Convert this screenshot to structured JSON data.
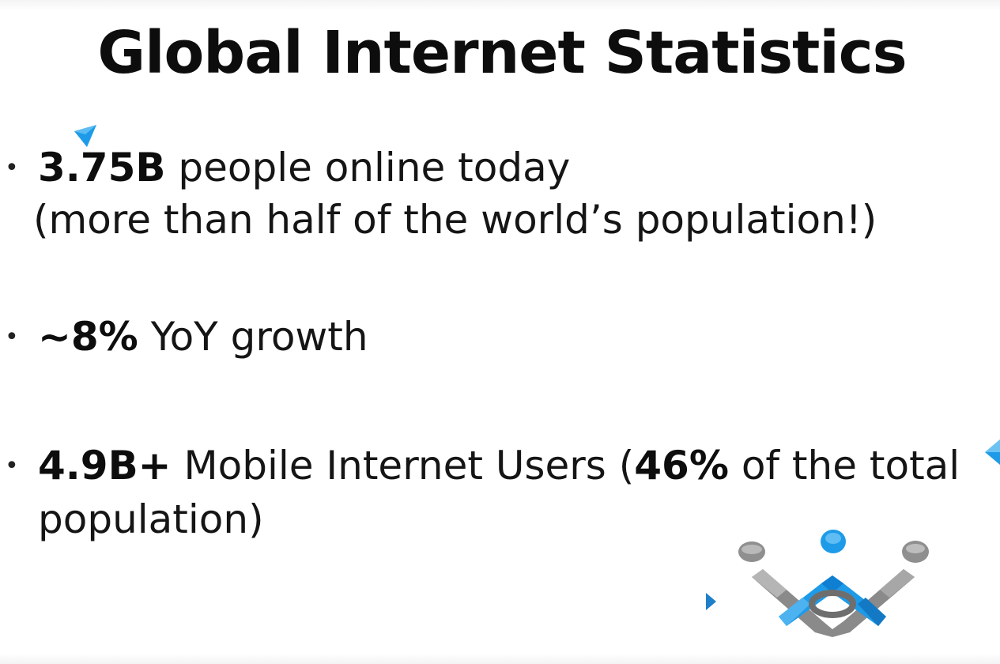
{
  "slide": {
    "title": "Global Internet Statistics",
    "bullets": [
      {
        "strong": "3.75B",
        "text": " people online today",
        "line2": "(more than half of the world’s population!)"
      },
      {
        "strong": "~8%",
        "text": " YoY growth"
      },
      {
        "strong": "4.9B+",
        "text": " Mobile Internet Users (",
        "strong2": "46%",
        "text2": " of the total",
        "line2": "population)"
      }
    ],
    "colors": {
      "accent_blue": "#1e9be8",
      "logo_gray": "#8a8a8a",
      "text": "#111111"
    },
    "logo_icon": "people-network-logo-icon"
  }
}
